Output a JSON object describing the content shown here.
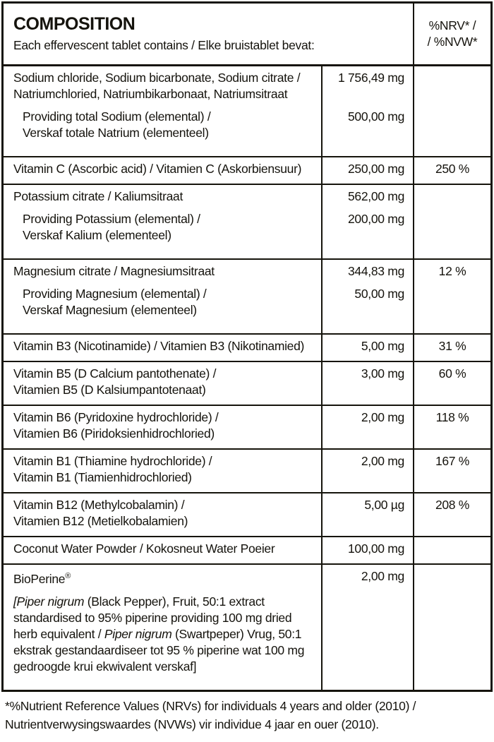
{
  "colors": {
    "border": "#16140c",
    "text": "#15130d",
    "background": "#ffffff"
  },
  "header": {
    "title": "COMPOSITION",
    "subtitle": "Each effervescent tablet contains / Elke bruistablet bevat:",
    "nrv_line1": "%NRV* /",
    "nrv_line2": "/ %NVW*"
  },
  "table": {
    "rows": [
      {
        "lines": [
          {
            "text": "Sodium chloride, Sodium bicarbonate, Sodium citrate /",
            "amount": "1 756,49 mg"
          },
          {
            "text": "Natriumchloried, Natriumbikarbonaat, Natriumsitraat"
          },
          {
            "text": "Providing total Sodium (elemental) /",
            "indent": true,
            "gap": true,
            "amount": "500,00 mg"
          },
          {
            "text": "Verskaf totale Natrium (elementeel)",
            "indent": true
          }
        ]
      },
      {
        "lines": [
          {
            "text": "Vitamin C (Ascorbic acid) / Vitamien C (Askorbiensuur)",
            "amount": "250,00 mg",
            "nrv": "250 %"
          }
        ]
      },
      {
        "lines": [
          {
            "text": "Potassium citrate / Kaliumsitraat",
            "amount": "562,00 mg"
          },
          {
            "text": "Providing Potassium (elemental) /",
            "indent": true,
            "gap": true,
            "amount": "200,00 mg"
          },
          {
            "text": "Verskaf Kalium (elementeel)",
            "indent": true
          }
        ]
      },
      {
        "lines": [
          {
            "text": "Magnesium citrate / Magnesiumsitraat",
            "amount": "344,83 mg",
            "nrv": "12 %"
          },
          {
            "text": "Providing Magnesium (elemental) /",
            "indent": true,
            "gap": true,
            "amount": "50,00 mg"
          },
          {
            "text": "Verskaf Magnesium (elementeel)",
            "indent": true
          }
        ]
      },
      {
        "lines": [
          {
            "text": "Vitamin B3 (Nicotinamide) / Vitamien B3 (Nikotinamied)",
            "amount": "5,00 mg",
            "nrv": "31 %"
          }
        ]
      },
      {
        "lines": [
          {
            "text": "Vitamin B5 (D Calcium pantothenate) /",
            "amount": "3,00 mg",
            "nrv": "60 %"
          },
          {
            "text": "Vitamien B5 (D Kalsiumpantotenaat)"
          }
        ]
      },
      {
        "lines": [
          {
            "text": "Vitamin B6 (Pyridoxine hydrochloride) /",
            "amount": "2,00 mg",
            "nrv": "118 %"
          },
          {
            "text": "Vitamien B6 (Piridoksienhidrochloried)"
          }
        ]
      },
      {
        "lines": [
          {
            "text": "Vitamin B1 (Thiamine hydrochloride) /",
            "amount": "2,00 mg",
            "nrv": "167 %"
          },
          {
            "text": "Vitamin B1 (Tiamienhidrochloried)"
          }
        ]
      },
      {
        "lines": [
          {
            "text": "Vitamin B12 (Methylcobalamin) /",
            "amount": "5,00 µg",
            "nrv": "208 %"
          },
          {
            "text": "Vitamien B12 (Metielkobalamien)"
          }
        ]
      },
      {
        "lines": [
          {
            "text": "Coconut Water Powder / Kokosneut Water Poeier",
            "amount": "100,00 mg"
          }
        ]
      },
      {
        "lines": [
          {
            "segments": [
              {
                "text": "BioPerine"
              },
              {
                "text": "®",
                "sup": true
              }
            ],
            "amount": "2,00 mg"
          },
          {
            "segments": [
              {
                "text": "[Piper nigrum",
                "italic": true
              },
              {
                "text": " (Black Pepper), Fruit, 50:1 extract"
              }
            ],
            "gap": true
          },
          {
            "text": "standardised to 95% piperine providing 100 mg dried"
          },
          {
            "segments": [
              {
                "text": "herb equivalent / "
              },
              {
                "text": "Piper nigrum",
                "italic": true
              },
              {
                "text": " (Swartpeper) Vrug, 50:1"
              }
            ]
          },
          {
            "text": "ekstrak gestandaardiseer tot 95 % piperine wat 100 mg"
          },
          {
            "text": "gedroogde krui ekwivalent verskaf]"
          }
        ]
      }
    ]
  },
  "footnote": {
    "line1": "*%Nutrient Reference Values (NRVs) for individuals 4 years and older (2010) /",
    "line2": "Nutrientverwysingswaardes (NVWs) vir individue 4 jaar en ouer (2010)."
  }
}
